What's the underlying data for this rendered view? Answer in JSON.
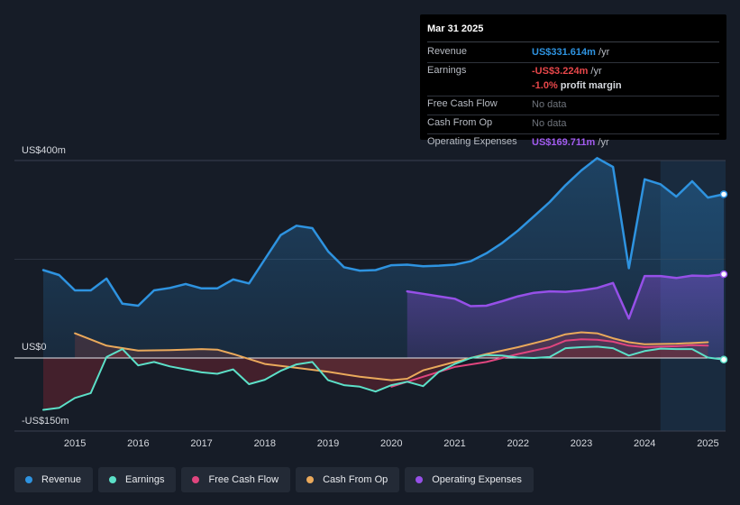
{
  "chart_data": {
    "type": "line",
    "title": "",
    "xlabel": "",
    "ylabel": "",
    "ylim": [
      -150,
      400
    ],
    "y_axis_labels": [
      {
        "value": 400,
        "text": "US$400m"
      },
      {
        "value": 0,
        "text": "US$0"
      },
      {
        "value": -150,
        "text": "-US$150m"
      }
    ],
    "x_ticks": [
      2015,
      2016,
      2017,
      2018,
      2019,
      2020,
      2021,
      2022,
      2023,
      2024,
      2025
    ],
    "x_range": [
      2014.5,
      2025.25
    ],
    "highlight_start": 2024.25,
    "series": [
      {
        "name": "Revenue",
        "color": "#2e93e0",
        "fill": true,
        "x": [
          2014.5,
          2014.75,
          2015.0,
          2015.25,
          2015.5,
          2015.75,
          2016.0,
          2016.25,
          2016.5,
          2016.75,
          2017.0,
          2017.25,
          2017.5,
          2017.75,
          2018.0,
          2018.25,
          2018.5,
          2018.75,
          2019.0,
          2019.25,
          2019.5,
          2019.75,
          2020.0,
          2020.25,
          2020.5,
          2020.75,
          2021.0,
          2021.25,
          2021.5,
          2021.75,
          2022.0,
          2022.25,
          2022.5,
          2022.75,
          2023.0,
          2023.25,
          2023.5,
          2023.75,
          2024.0,
          2024.25,
          2024.5,
          2024.75,
          2025.0,
          2025.25
        ],
        "values": [
          178,
          168,
          137,
          137,
          161,
          110,
          106,
          137,
          142,
          150,
          141,
          141,
          159,
          151,
          200,
          249,
          268,
          263,
          216,
          184,
          177,
          178,
          188,
          189,
          186,
          187,
          189,
          196,
          212,
          233,
          258,
          287,
          316,
          350,
          380,
          405,
          387,
          182,
          362,
          352,
          327,
          358,
          325,
          331.614
        ]
      },
      {
        "name": "Earnings",
        "color": "#5ce0c8",
        "fill": false,
        "x": [
          2014.5,
          2014.75,
          2015.0,
          2015.25,
          2015.5,
          2015.75,
          2016.0,
          2016.25,
          2016.5,
          2016.75,
          2017.0,
          2017.25,
          2017.5,
          2017.75,
          2018.0,
          2018.25,
          2018.5,
          2018.75,
          2019.0,
          2019.25,
          2019.5,
          2019.75,
          2020.0,
          2020.25,
          2020.5,
          2020.75,
          2021.0,
          2021.25,
          2021.5,
          2021.75,
          2022.0,
          2022.25,
          2022.5,
          2022.75,
          2023.0,
          2023.25,
          2023.5,
          2023.75,
          2024.0,
          2024.25,
          2024.5,
          2024.75,
          2025.0,
          2025.25
        ],
        "values": [
          -105,
          -101,
          -81,
          -71,
          2,
          18,
          -15,
          -8,
          -17,
          -23,
          -29,
          -32,
          -23,
          -53,
          -44,
          -26,
          -13,
          -8,
          -45,
          -55,
          -58,
          -68,
          -55,
          -48,
          -57,
          -28,
          -12,
          0,
          6,
          5,
          1,
          0,
          2,
          20,
          22,
          23,
          20,
          5,
          14,
          19,
          18,
          18,
          1,
          -3.224
        ]
      },
      {
        "name": "Free Cash Flow",
        "color": "#e0457e",
        "fill": false,
        "x": [
          2020.0,
          2020.5,
          2021.0,
          2021.5,
          2022.0,
          2022.5,
          2022.75,
          2023.0,
          2023.25,
          2023.5,
          2023.75,
          2024.0,
          2024.25,
          2024.5,
          2024.75,
          2025.0
        ],
        "values": [
          -58,
          -38,
          -18,
          -8,
          8,
          22,
          35,
          38,
          37,
          33,
          25,
          22,
          23,
          24,
          26,
          25
        ]
      },
      {
        "name": "Cash From Op",
        "color": "#eaa95b",
        "fill": false,
        "x": [
          2015.0,
          2015.5,
          2016.0,
          2016.5,
          2017.0,
          2017.25,
          2017.5,
          2018.0,
          2018.5,
          2019.0,
          2019.5,
          2020.0,
          2020.25,
          2020.5,
          2021.0,
          2021.5,
          2022.0,
          2022.5,
          2022.75,
          2023.0,
          2023.25,
          2023.5,
          2023.75,
          2024.0,
          2024.5,
          2025.0
        ],
        "values": [
          50,
          25,
          15,
          16,
          18,
          17,
          8,
          -12,
          -20,
          -28,
          -38,
          -45,
          -42,
          -25,
          -8,
          8,
          22,
          38,
          48,
          52,
          50,
          40,
          32,
          28,
          29,
          32
        ]
      },
      {
        "name": "Operating Expenses",
        "color": "#9650e8",
        "fill": true,
        "x": [
          2020.25,
          2020.5,
          2020.75,
          2021.0,
          2021.25,
          2021.5,
          2021.75,
          2022.0,
          2022.25,
          2022.5,
          2022.75,
          2023.0,
          2023.25,
          2023.5,
          2023.75,
          2024.0,
          2024.25,
          2024.5,
          2024.75,
          2025.0,
          2025.25
        ],
        "values": [
          135,
          130,
          125,
          120,
          105,
          106,
          115,
          125,
          132,
          135,
          134,
          137,
          142,
          152,
          80,
          166,
          166,
          162,
          167,
          166,
          169.711
        ]
      }
    ]
  },
  "tooltip": {
    "date": "Mar 31 2025",
    "rows": [
      {
        "label": "Revenue",
        "value": "US$331.614m",
        "unit": " /yr",
        "color": "#2e93e0"
      },
      {
        "label": "Earnings",
        "value": "-US$3.224m",
        "unit": " /yr",
        "color": "#e8474a",
        "sub_value": "-1.0%",
        "sub_text": " profit margin"
      },
      {
        "label": "Free Cash Flow",
        "value": "No data",
        "unit": "",
        "color": "#6f747c"
      },
      {
        "label": "Cash From Op",
        "value": "No data",
        "unit": "",
        "color": "#6f747c"
      },
      {
        "label": "Operating Expenses",
        "value": "US$169.711m",
        "unit": " /yr",
        "color": "#a35cf0"
      }
    ]
  },
  "legend": [
    {
      "label": "Revenue",
      "color": "#2e93e0"
    },
    {
      "label": "Earnings",
      "color": "#5ce0c8"
    },
    {
      "label": "Free Cash Flow",
      "color": "#e0457e"
    },
    {
      "label": "Cash From Op",
      "color": "#eaa95b"
    },
    {
      "label": "Operating Expenses",
      "color": "#9650e8"
    }
  ]
}
